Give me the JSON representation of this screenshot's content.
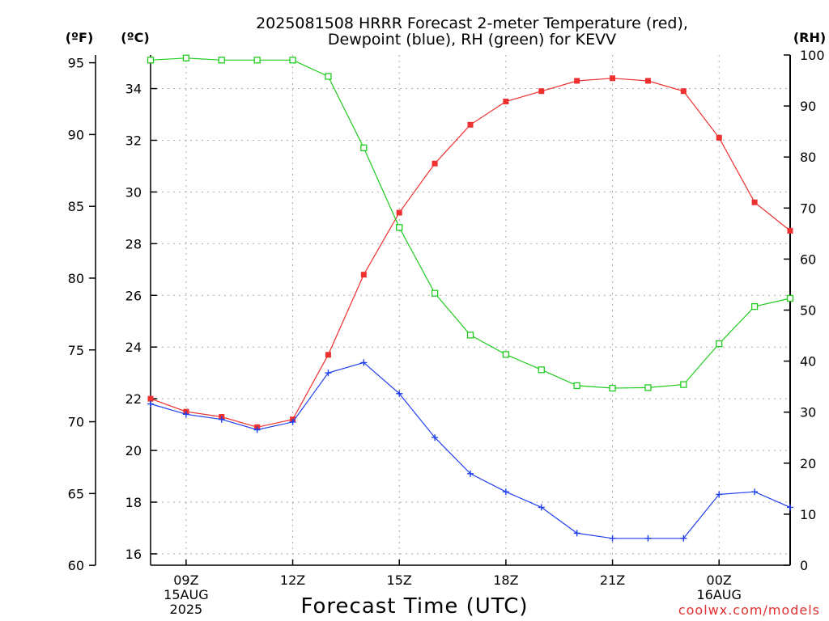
{
  "chart_data": {
    "type": "line",
    "title": [
      "2025081508 HRRR Forecast 2-meter Temperature (red),",
      "Dewpoint (blue), RH (green) for KEVV"
    ],
    "xlabel": "Forecast Time (UTC)",
    "credit": "coolwx.com/models",
    "units": {
      "fahrenheit": "(ºF)",
      "celsius": "(ºC)",
      "rh": "(RH)"
    },
    "x_hours": [
      8,
      9,
      10,
      11,
      12,
      13,
      14,
      15,
      16,
      17,
      18,
      19,
      20,
      21,
      22,
      23,
      24,
      25,
      26
    ],
    "x_ticks": [
      {
        "hour": 9,
        "lines": [
          "09Z",
          "15AUG",
          "2025"
        ]
      },
      {
        "hour": 12,
        "lines": [
          "12Z"
        ]
      },
      {
        "hour": 15,
        "lines": [
          "15Z"
        ]
      },
      {
        "hour": 18,
        "lines": [
          "18Z"
        ]
      },
      {
        "hour": 21,
        "lines": [
          "21Z"
        ]
      },
      {
        "hour": 24,
        "lines": [
          "00Z",
          "16AUG"
        ]
      }
    ],
    "xlim": [
      8,
      26
    ],
    "axes": {
      "fahrenheit": {
        "ticks": [
          60,
          65,
          70,
          75,
          80,
          85,
          90,
          95
        ]
      },
      "celsius": {
        "ticks": [
          16,
          18,
          20,
          22,
          24,
          26,
          28,
          30,
          32,
          34
        ],
        "lim": [
          15.56,
          35.3
        ]
      },
      "rh": {
        "ticks": [
          0,
          10,
          20,
          30,
          40,
          50,
          60,
          70,
          80,
          90,
          100
        ],
        "lim": [
          0,
          100
        ]
      }
    },
    "grid": true,
    "series": [
      {
        "name": "Temperature",
        "color": "#ee3030",
        "marker": "filled-square",
        "axis": "celsius",
        "values": [
          22.0,
          21.5,
          21.3,
          20.9,
          21.2,
          23.7,
          26.8,
          29.2,
          31.1,
          32.6,
          33.5,
          33.9,
          34.3,
          34.4,
          34.3,
          33.9,
          32.1,
          29.6,
          28.5
        ]
      },
      {
        "name": "Dewpoint",
        "color": "#2040ee",
        "marker": "plus",
        "axis": "celsius",
        "values": [
          21.8,
          21.4,
          21.2,
          20.8,
          21.1,
          23.0,
          23.4,
          22.2,
          20.5,
          19.1,
          18.4,
          17.8,
          16.8,
          16.6,
          16.6,
          16.6,
          18.3,
          18.4,
          17.8
        ]
      },
      {
        "name": "RH",
        "color": "#20cc20",
        "marker": "open-square",
        "axis": "rh",
        "values": [
          99,
          99.4,
          99,
          99,
          99,
          95.8,
          81.8,
          66.2,
          53.3,
          45.1,
          41.3,
          38.3,
          35.2,
          34.7,
          34.8,
          35.4,
          43.4,
          50.7,
          52.3
        ]
      }
    ]
  }
}
